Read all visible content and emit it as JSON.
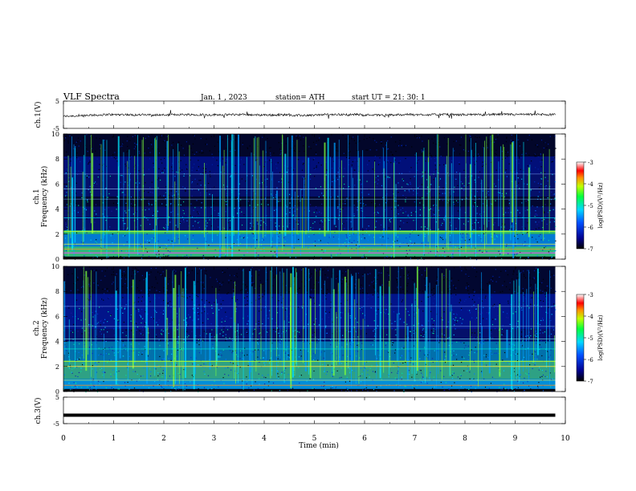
{
  "header": {
    "title": "VLF  Spectra",
    "date": "Jan.  1  , 2023",
    "station": "station= ATH",
    "start": "start  UT  =    21: 30: 1"
  },
  "colors": {
    "spectrogram_background": "#000000",
    "spectrogram_low": "#0a1a8f",
    "spectrogram_mid": "#00c8ff",
    "spectrogram_high": "#7dff3c",
    "waveform": "#000000"
  },
  "chart_data": [
    {
      "type": "line",
      "name": "ch1-waveform",
      "ylabel": "ch.1(V)",
      "ylim": [
        -5,
        5
      ],
      "yticks": [
        "5",
        "-5"
      ],
      "x_range": [
        0,
        10
      ],
      "description_values": "noisy signal around -0.5 V spanning 0 to 9.8 min"
    },
    {
      "type": "heatmap",
      "name": "ch1-spectrogram",
      "ylabel": "ch.1\nFrequency  (kHz)",
      "yticks": [
        "0",
        "2",
        "4",
        "6",
        "8",
        "10"
      ],
      "ylim": [
        0,
        10
      ],
      "x_range": [
        0,
        9.8
      ],
      "colorbar": {
        "label": "log(PSD)(V²/Hz)",
        "ticks": [
          "-3",
          "-4",
          "-5",
          "-6",
          "-7"
        ],
        "range": [
          -7,
          -3
        ]
      }
    },
    {
      "type": "heatmap",
      "name": "ch2-spectrogram",
      "ylabel": "ch.2\nFrequency  (kHz)",
      "yticks": [
        "0",
        "2",
        "4",
        "6",
        "8",
        "10"
      ],
      "ylim": [
        0,
        10
      ],
      "x_range": [
        0,
        9.8
      ],
      "colorbar": {
        "label": "log(PSD)(V²/Hz)",
        "ticks": [
          "-3",
          "-4",
          "-5",
          "-6",
          "-7"
        ],
        "range": [
          -7,
          -3
        ]
      }
    },
    {
      "type": "line",
      "name": "ch3-waveform",
      "ylabel": "ch.3(V)",
      "ylim": [
        -5,
        5
      ],
      "yticks": [
        "5",
        "-5"
      ],
      "x_range": [
        0,
        9.8
      ],
      "constant_value": -1.8
    }
  ],
  "xaxis": {
    "label": "Time  (min)",
    "ticks": [
      "0",
      "1",
      "2",
      "3",
      "4",
      "5",
      "6",
      "7",
      "8",
      "9",
      "10"
    ],
    "range": [
      0,
      10
    ]
  }
}
